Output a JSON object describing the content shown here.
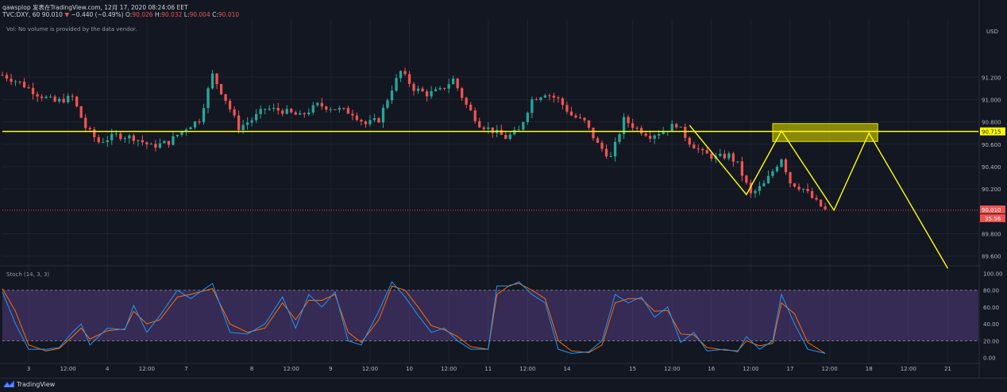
{
  "header": {
    "line1": "qawsplop 发表在TradingView.com, 12月 17, 2020 08:24:06 EET",
    "symbol": "TVC:DXY, 60",
    "last": "90.010",
    "change": "−0.440 (−0.49%)",
    "o_label": "O:",
    "o_value": "90.026",
    "h_label": "H:",
    "h_value": "90.032",
    "l_label": "L:",
    "l_value": "90.004",
    "c_label": "C:",
    "c_value": "90.010"
  },
  "volume_note": "Vol: No volume is provided by the data vendor.",
  "stoch_label": "Stoch (14, 3, 3)",
  "brand": "TradingView",
  "colors": {
    "background": "#131722",
    "up": "#26a69a",
    "down": "#ef5350",
    "level_line": "#ffff00",
    "stoch_k": "#2196f3",
    "stoch_d": "#ff6d00",
    "stoch_band": "#7e57c2"
  },
  "chart_data": [
    {
      "type": "candlestick",
      "y_axis_unit": "USD",
      "ylim": [
        89.52,
        91.72
      ],
      "price_ticks": [
        "91.200",
        "91.000",
        "90.800",
        "90.600",
        "90.400",
        "90.200",
        "89.800",
        "89.600"
      ],
      "price_tick_values": [
        91.2,
        91.0,
        90.8,
        90.6,
        90.4,
        90.2,
        89.8,
        89.6
      ],
      "time_ticks": [
        "3",
        "12:00",
        "4",
        "12:00",
        "7",
        "8",
        "12:00",
        "9",
        "12:00",
        "10",
        "12:00",
        "11",
        "12:00",
        "14",
        "15",
        "12:00",
        "16",
        "12:00",
        "17",
        "12:00",
        "18",
        "12:00",
        "21"
      ],
      "time_tick_bar_index": [
        6,
        15,
        24,
        33,
        42,
        57,
        66,
        75,
        84,
        93,
        102,
        111,
        120,
        129,
        144,
        153,
        162,
        171,
        180,
        189,
        198,
        207,
        216
      ],
      "bar_count_domain": [
        0,
        223
      ],
      "close_path": [
        [
          0,
          91.22
        ],
        [
          4,
          91.15
        ],
        [
          8,
          91.05
        ],
        [
          12,
          90.98
        ],
        [
          16,
          91.02
        ],
        [
          19,
          90.75
        ],
        [
          22,
          90.62
        ],
        [
          26,
          90.68
        ],
        [
          30,
          90.66
        ],
        [
          34,
          90.58
        ],
        [
          38,
          90.62
        ],
        [
          42,
          90.75
        ],
        [
          45,
          90.82
        ],
        [
          48,
          91.22
        ],
        [
          51,
          91.0
        ],
        [
          54,
          90.75
        ],
        [
          57,
          90.82
        ],
        [
          60,
          90.92
        ],
        [
          64,
          90.9
        ],
        [
          68,
          90.85
        ],
        [
          72,
          90.95
        ],
        [
          76,
          90.92
        ],
        [
          80,
          90.88
        ],
        [
          83,
          90.78
        ],
        [
          86,
          90.82
        ],
        [
          89,
          91.1
        ],
        [
          91,
          91.25
        ],
        [
          94,
          91.1
        ],
        [
          97,
          91.05
        ],
        [
          100,
          91.08
        ],
        [
          103,
          91.18
        ],
        [
          106,
          90.95
        ],
        [
          109,
          90.78
        ],
        [
          112,
          90.72
        ],
        [
          115,
          90.66
        ],
        [
          118,
          90.72
        ],
        [
          121,
          91.0
        ],
        [
          124,
          91.06
        ],
        [
          127,
          91.0
        ],
        [
          130,
          90.86
        ],
        [
          133,
          90.8
        ],
        [
          136,
          90.6
        ],
        [
          139,
          90.48
        ],
        [
          142,
          90.82
        ],
        [
          145,
          90.74
        ],
        [
          148,
          90.68
        ],
        [
          151,
          90.72
        ],
        [
          154,
          90.78
        ],
        [
          157,
          90.62
        ],
        [
          160,
          90.52
        ],
        [
          163,
          90.48
        ],
        [
          166,
          90.5
        ],
        [
          168,
          90.42
        ],
        [
          171,
          90.15
        ],
        [
          174,
          90.24
        ],
        [
          176,
          90.36
        ],
        [
          178,
          90.48
        ],
        [
          180,
          90.26
        ],
        [
          183,
          90.2
        ],
        [
          186,
          90.08
        ],
        [
          188,
          90.01
        ]
      ],
      "horizontal_level": {
        "value": 90.715,
        "label": "90.715"
      },
      "last_price": {
        "value": 90.01,
        "label": "90.010",
        "countdown": "35:56"
      },
      "resistance_zone": {
        "y_from": 90.625,
        "y_to": 90.785,
        "x_from_bar": 176,
        "x_to_bar": 200
      },
      "projection_path": [
        [
          157,
          90.77
        ],
        [
          170,
          90.15
        ],
        [
          178,
          90.72
        ],
        [
          190,
          90.01
        ],
        [
          198,
          90.7
        ],
        [
          216,
          89.49
        ]
      ]
    },
    {
      "type": "line",
      "name": "Stoch (14, 3, 3)",
      "ylim": [
        -5,
        108
      ],
      "ticks": [
        "100.00",
        "80.00",
        "60.00",
        "40.00",
        "20.00",
        "0.00"
      ],
      "tick_values": [
        100,
        80,
        60,
        40,
        20,
        0
      ],
      "band": [
        20,
        80
      ],
      "k_path": [
        [
          0,
          78
        ],
        [
          3,
          40
        ],
        [
          6,
          10
        ],
        [
          10,
          10
        ],
        [
          13,
          12
        ],
        [
          16,
          30
        ],
        [
          18,
          40
        ],
        [
          20,
          15
        ],
        [
          24,
          35
        ],
        [
          28,
          33
        ],
        [
          30,
          62
        ],
        [
          33,
          30
        ],
        [
          36,
          50
        ],
        [
          40,
          80
        ],
        [
          43,
          70
        ],
        [
          48,
          88
        ],
        [
          52,
          30
        ],
        [
          56,
          28
        ],
        [
          60,
          40
        ],
        [
          64,
          72
        ],
        [
          67,
          35
        ],
        [
          70,
          75
        ],
        [
          73,
          60
        ],
        [
          76,
          78
        ],
        [
          79,
          20
        ],
        [
          82,
          15
        ],
        [
          86,
          55
        ],
        [
          89,
          90
        ],
        [
          92,
          72
        ],
        [
          95,
          50
        ],
        [
          98,
          30
        ],
        [
          101,
          35
        ],
        [
          104,
          20
        ],
        [
          107,
          10
        ],
        [
          111,
          10
        ],
        [
          113,
          85
        ],
        [
          116,
          85
        ],
        [
          118,
          90
        ],
        [
          121,
          75
        ],
        [
          124,
          65
        ],
        [
          127,
          10
        ],
        [
          130,
          5
        ],
        [
          134,
          7
        ],
        [
          137,
          20
        ],
        [
          140,
          75
        ],
        [
          143,
          65
        ],
        [
          146,
          72
        ],
        [
          149,
          48
        ],
        [
          152,
          60
        ],
        [
          155,
          18
        ],
        [
          158,
          30
        ],
        [
          161,
          8
        ],
        [
          165,
          10
        ],
        [
          168,
          7
        ],
        [
          170,
          25
        ],
        [
          173,
          10
        ],
        [
          176,
          20
        ],
        [
          178,
          75
        ],
        [
          181,
          40
        ],
        [
          184,
          10
        ],
        [
          188,
          5
        ]
      ],
      "d_path": [
        [
          0,
          82
        ],
        [
          3,
          55
        ],
        [
          6,
          15
        ],
        [
          10,
          8
        ],
        [
          13,
          11
        ],
        [
          16,
          25
        ],
        [
          18,
          35
        ],
        [
          20,
          22
        ],
        [
          24,
          32
        ],
        [
          28,
          34
        ],
        [
          30,
          55
        ],
        [
          33,
          40
        ],
        [
          36,
          45
        ],
        [
          40,
          72
        ],
        [
          43,
          75
        ],
        [
          48,
          82
        ],
        [
          52,
          40
        ],
        [
          56,
          30
        ],
        [
          60,
          35
        ],
        [
          64,
          65
        ],
        [
          67,
          45
        ],
        [
          70,
          68
        ],
        [
          73,
          68
        ],
        [
          76,
          75
        ],
        [
          79,
          30
        ],
        [
          82,
          18
        ],
        [
          86,
          45
        ],
        [
          89,
          85
        ],
        [
          92,
          80
        ],
        [
          95,
          60
        ],
        [
          98,
          38
        ],
        [
          101,
          33
        ],
        [
          104,
          25
        ],
        [
          107,
          13
        ],
        [
          111,
          10
        ],
        [
          113,
          75
        ],
        [
          116,
          86
        ],
        [
          118,
          88
        ],
        [
          121,
          80
        ],
        [
          124,
          70
        ],
        [
          127,
          20
        ],
        [
          130,
          8
        ],
        [
          134,
          6
        ],
        [
          137,
          15
        ],
        [
          140,
          65
        ],
        [
          143,
          70
        ],
        [
          146,
          70
        ],
        [
          149,
          55
        ],
        [
          152,
          56
        ],
        [
          155,
          28
        ],
        [
          158,
          27
        ],
        [
          161,
          12
        ],
        [
          165,
          9
        ],
        [
          168,
          8
        ],
        [
          170,
          20
        ],
        [
          173,
          14
        ],
        [
          176,
          17
        ],
        [
          178,
          65
        ],
        [
          181,
          52
        ],
        [
          184,
          18
        ],
        [
          188,
          5
        ]
      ]
    }
  ]
}
